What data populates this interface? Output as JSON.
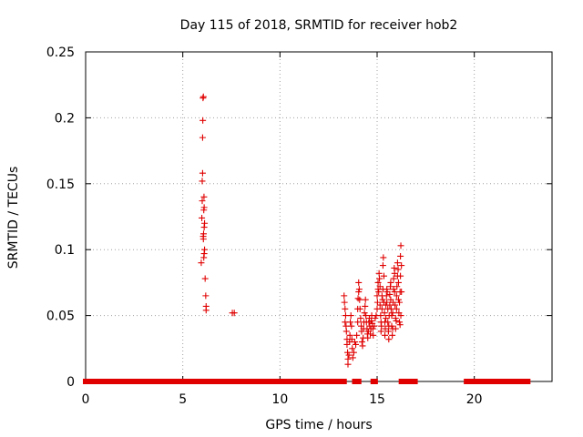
{
  "chart_data": {
    "type": "scatter",
    "title": "Day 115 of 2018, SRMTID for receiver hob2",
    "xlabel": "GPS time / hours",
    "ylabel": "SRMTID / TECUs",
    "xlim": [
      0,
      24
    ],
    "ylim": [
      0,
      0.25
    ],
    "xticks": [
      0,
      5,
      10,
      15,
      20
    ],
    "xtick_labels": [
      "0",
      "5",
      "10",
      "15",
      "20"
    ],
    "yticks": [
      0,
      0.05,
      0.1,
      0.15,
      0.2,
      0.25
    ],
    "ytick_labels": [
      "0",
      "0.05",
      "0.1",
      "0.15",
      "0.2",
      "0.25"
    ],
    "grid": true,
    "marker": "+",
    "color": "#e00000",
    "series": [
      {
        "name": "SRMTID",
        "zero_segments": [
          [
            0.0,
            5.95
          ],
          [
            6.15,
            13.3
          ],
          [
            13.85,
            14.05
          ],
          [
            14.8,
            14.9
          ],
          [
            16.25,
            16.95
          ],
          [
            19.6,
            22.75
          ]
        ],
        "points": [
          {
            "x": 5.95,
            "y": 0.09
          },
          {
            "x": 5.98,
            "y": 0.124
          },
          {
            "x": 6.0,
            "y": 0.137
          },
          {
            "x": 6.0,
            "y": 0.152
          },
          {
            "x": 6.02,
            "y": 0.158
          },
          {
            "x": 6.02,
            "y": 0.185
          },
          {
            "x": 6.03,
            "y": 0.198
          },
          {
            "x": 6.04,
            "y": 0.215
          },
          {
            "x": 6.06,
            "y": 0.216
          },
          {
            "x": 6.05,
            "y": 0.11
          },
          {
            "x": 6.06,
            "y": 0.108
          },
          {
            "x": 6.07,
            "y": 0.112
          },
          {
            "x": 6.08,
            "y": 0.13
          },
          {
            "x": 6.09,
            "y": 0.14
          },
          {
            "x": 6.1,
            "y": 0.132
          },
          {
            "x": 6.1,
            "y": 0.117
          },
          {
            "x": 6.12,
            "y": 0.12
          },
          {
            "x": 6.1,
            "y": 0.097
          },
          {
            "x": 6.12,
            "y": 0.1
          },
          {
            "x": 6.08,
            "y": 0.094
          },
          {
            "x": 6.15,
            "y": 0.078
          },
          {
            "x": 6.18,
            "y": 0.065
          },
          {
            "x": 6.2,
            "y": 0.057
          },
          {
            "x": 6.2,
            "y": 0.054
          },
          {
            "x": 7.55,
            "y": 0.052
          },
          {
            "x": 7.65,
            "y": 0.052
          },
          {
            "x": 13.3,
            "y": 0.065
          },
          {
            "x": 13.32,
            "y": 0.06
          },
          {
            "x": 13.35,
            "y": 0.055
          },
          {
            "x": 13.35,
            "y": 0.045
          },
          {
            "x": 13.38,
            "y": 0.05
          },
          {
            "x": 13.4,
            "y": 0.042
          },
          {
            "x": 13.42,
            "y": 0.038
          },
          {
            "x": 13.45,
            "y": 0.032
          },
          {
            "x": 13.45,
            "y": 0.028
          },
          {
            "x": 13.48,
            "y": 0.022
          },
          {
            "x": 13.5,
            "y": 0.017
          },
          {
            "x": 13.5,
            "y": 0.013
          },
          {
            "x": 13.55,
            "y": 0.02
          },
          {
            "x": 13.58,
            "y": 0.03
          },
          {
            "x": 13.6,
            "y": 0.035
          },
          {
            "x": 13.62,
            "y": 0.045
          },
          {
            "x": 13.65,
            "y": 0.05
          },
          {
            "x": 13.68,
            "y": 0.042
          },
          {
            "x": 13.7,
            "y": 0.032
          },
          {
            "x": 13.72,
            "y": 0.025
          },
          {
            "x": 13.75,
            "y": 0.018
          },
          {
            "x": 13.8,
            "y": 0.022
          },
          {
            "x": 13.85,
            "y": 0.03
          },
          {
            "x": 13.9,
            "y": 0.028
          },
          {
            "x": 13.95,
            "y": 0.035
          },
          {
            "x": 14.0,
            "y": 0.045
          },
          {
            "x": 14.0,
            "y": 0.055
          },
          {
            "x": 14.02,
            "y": 0.063
          },
          {
            "x": 14.05,
            "y": 0.068
          },
          {
            "x": 14.05,
            "y": 0.075
          },
          {
            "x": 14.08,
            "y": 0.07
          },
          {
            "x": 14.1,
            "y": 0.062
          },
          {
            "x": 14.12,
            "y": 0.055
          },
          {
            "x": 14.15,
            "y": 0.048
          },
          {
            "x": 14.18,
            "y": 0.042
          },
          {
            "x": 14.2,
            "y": 0.038
          },
          {
            "x": 14.22,
            "y": 0.03
          },
          {
            "x": 14.25,
            "y": 0.027
          },
          {
            "x": 14.28,
            "y": 0.033
          },
          {
            "x": 14.3,
            "y": 0.04
          },
          {
            "x": 14.32,
            "y": 0.045
          },
          {
            "x": 14.35,
            "y": 0.052
          },
          {
            "x": 14.38,
            "y": 0.057
          },
          {
            "x": 14.4,
            "y": 0.062
          },
          {
            "x": 14.42,
            "y": 0.05
          },
          {
            "x": 14.45,
            "y": 0.045
          },
          {
            "x": 14.48,
            "y": 0.04
          },
          {
            "x": 14.5,
            "y": 0.036
          },
          {
            "x": 14.52,
            "y": 0.033
          },
          {
            "x": 14.55,
            "y": 0.038
          },
          {
            "x": 14.58,
            "y": 0.045
          },
          {
            "x": 14.6,
            "y": 0.048
          },
          {
            "x": 14.62,
            "y": 0.042
          },
          {
            "x": 14.65,
            "y": 0.036
          },
          {
            "x": 14.68,
            "y": 0.04
          },
          {
            "x": 14.7,
            "y": 0.046
          },
          {
            "x": 14.72,
            "y": 0.05
          },
          {
            "x": 14.75,
            "y": 0.044
          },
          {
            "x": 14.78,
            "y": 0.04
          },
          {
            "x": 14.8,
            "y": 0.035
          },
          {
            "x": 14.85,
            "y": 0.042
          },
          {
            "x": 14.9,
            "y": 0.048
          },
          {
            "x": 14.95,
            "y": 0.05
          },
          {
            "x": 15.0,
            "y": 0.055
          },
          {
            "x": 15.0,
            "y": 0.065
          },
          {
            "x": 15.02,
            "y": 0.06
          },
          {
            "x": 15.05,
            "y": 0.07
          },
          {
            "x": 15.05,
            "y": 0.075
          },
          {
            "x": 15.08,
            "y": 0.068
          },
          {
            "x": 15.1,
            "y": 0.082
          },
          {
            "x": 15.12,
            "y": 0.078
          },
          {
            "x": 15.15,
            "y": 0.072
          },
          {
            "x": 15.15,
            "y": 0.058
          },
          {
            "x": 15.18,
            "y": 0.05
          },
          {
            "x": 15.2,
            "y": 0.045
          },
          {
            "x": 15.2,
            "y": 0.038
          },
          {
            "x": 15.22,
            "y": 0.042
          },
          {
            "x": 15.25,
            "y": 0.055
          },
          {
            "x": 15.25,
            "y": 0.065
          },
          {
            "x": 15.28,
            "y": 0.062
          },
          {
            "x": 15.3,
            "y": 0.07
          },
          {
            "x": 15.3,
            "y": 0.088
          },
          {
            "x": 15.32,
            "y": 0.094
          },
          {
            "x": 15.35,
            "y": 0.08
          },
          {
            "x": 15.35,
            "y": 0.06
          },
          {
            "x": 15.38,
            "y": 0.052
          },
          {
            "x": 15.4,
            "y": 0.045
          },
          {
            "x": 15.4,
            "y": 0.035
          },
          {
            "x": 15.42,
            "y": 0.04
          },
          {
            "x": 15.45,
            "y": 0.048
          },
          {
            "x": 15.45,
            "y": 0.058
          },
          {
            "x": 15.48,
            "y": 0.065
          },
          {
            "x": 15.5,
            "y": 0.06
          },
          {
            "x": 15.5,
            "y": 0.07
          },
          {
            "x": 15.52,
            "y": 0.068
          },
          {
            "x": 15.55,
            "y": 0.055
          },
          {
            "x": 15.55,
            "y": 0.045
          },
          {
            "x": 15.58,
            "y": 0.038
          },
          {
            "x": 15.6,
            "y": 0.032
          },
          {
            "x": 15.6,
            "y": 0.042
          },
          {
            "x": 15.62,
            "y": 0.05
          },
          {
            "x": 15.65,
            "y": 0.058
          },
          {
            "x": 15.65,
            "y": 0.066
          },
          {
            "x": 15.68,
            "y": 0.072
          },
          {
            "x": 15.7,
            "y": 0.075
          },
          {
            "x": 15.7,
            "y": 0.062
          },
          {
            "x": 15.72,
            "y": 0.055
          },
          {
            "x": 15.75,
            "y": 0.05
          },
          {
            "x": 15.75,
            "y": 0.042
          },
          {
            "x": 15.78,
            "y": 0.035
          },
          {
            "x": 15.8,
            "y": 0.04
          },
          {
            "x": 15.8,
            "y": 0.052
          },
          {
            "x": 15.82,
            "y": 0.06
          },
          {
            "x": 15.85,
            "y": 0.07
          },
          {
            "x": 15.85,
            "y": 0.078
          },
          {
            "x": 15.88,
            "y": 0.086
          },
          {
            "x": 15.9,
            "y": 0.082
          },
          {
            "x": 15.9,
            "y": 0.068
          },
          {
            "x": 15.92,
            "y": 0.058
          },
          {
            "x": 15.95,
            "y": 0.048
          },
          {
            "x": 15.95,
            "y": 0.04
          },
          {
            "x": 15.98,
            "y": 0.046
          },
          {
            "x": 16.0,
            "y": 0.055
          },
          {
            "x": 16.0,
            "y": 0.065
          },
          {
            "x": 16.02,
            "y": 0.072
          },
          {
            "x": 16.05,
            "y": 0.08
          },
          {
            "x": 16.05,
            "y": 0.09
          },
          {
            "x": 16.08,
            "y": 0.085
          },
          {
            "x": 16.1,
            "y": 0.075
          },
          {
            "x": 16.1,
            "y": 0.062
          },
          {
            "x": 16.12,
            "y": 0.052
          },
          {
            "x": 16.15,
            "y": 0.045
          },
          {
            "x": 16.15,
            "y": 0.06
          },
          {
            "x": 16.18,
            "y": 0.068
          },
          {
            "x": 16.2,
            "y": 0.08
          },
          {
            "x": 16.2,
            "y": 0.095
          },
          {
            "x": 16.22,
            "y": 0.103
          },
          {
            "x": 16.25,
            "y": 0.088
          },
          {
            "x": 16.25,
            "y": 0.068
          },
          {
            "x": 16.22,
            "y": 0.05
          },
          {
            "x": 16.18,
            "y": 0.043
          }
        ]
      }
    ]
  }
}
